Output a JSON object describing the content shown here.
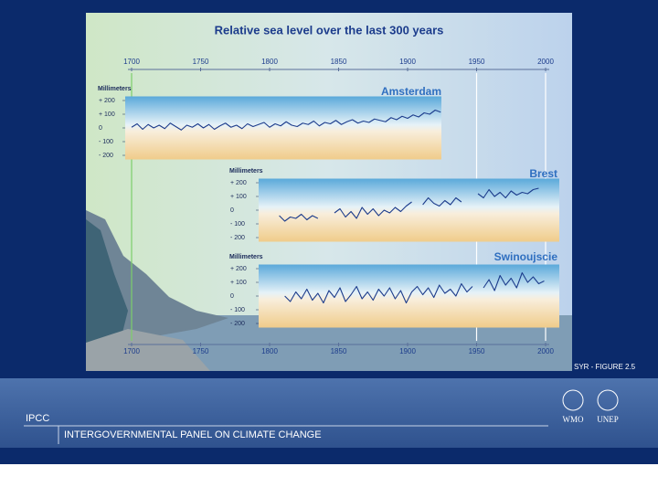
{
  "figure": {
    "title": "Relative sea level over the last 300 years",
    "xlim": [
      1700,
      2000
    ],
    "xticks": [
      1700,
      1750,
      1800,
      1850,
      1900,
      1950,
      2000
    ],
    "credit": "SYR - FIGURE 2.5"
  },
  "chart_data": [
    {
      "type": "line",
      "title": "Amsterdam",
      "ylabel": "Millimeters",
      "ylim": [
        -230,
        230
      ],
      "yticks": [
        {
          "value": 200,
          "label": "+ 200"
        },
        {
          "value": 100,
          "label": "+ 100"
        },
        0,
        {
          "value": -100,
          "label": "- 100"
        },
        {
          "value": -200,
          "label": "- 200"
        }
      ],
      "x": [
        1700,
        1704,
        1708,
        1712,
        1716,
        1720,
        1724,
        1728,
        1732,
        1736,
        1740,
        1744,
        1748,
        1752,
        1756,
        1760,
        1764,
        1768,
        1772,
        1776,
        1780,
        1784,
        1788,
        1792,
        1796,
        1800,
        1804,
        1808,
        1812,
        1816,
        1820,
        1824,
        1828,
        1832,
        1836,
        1840,
        1844,
        1848,
        1852,
        1856,
        1860,
        1864,
        1868,
        1872,
        1876,
        1880,
        1884,
        1888,
        1892,
        1896,
        1900,
        1904,
        1908,
        1912,
        1916,
        1920,
        1924
      ],
      "series": [
        {
          "name": "Amsterdam",
          "color": "#1c3c8c",
          "values": [
            5,
            30,
            -10,
            25,
            0,
            20,
            -5,
            35,
            10,
            -15,
            20,
            5,
            30,
            0,
            25,
            -10,
            15,
            35,
            5,
            20,
            -5,
            30,
            10,
            25,
            40,
            5,
            30,
            15,
            45,
            20,
            10,
            35,
            25,
            50,
            15,
            40,
            30,
            55,
            25,
            45,
            60,
            35,
            50,
            40,
            65,
            55,
            45,
            75,
            60,
            85,
            70,
            95,
            80,
            110,
            100,
            130,
            115
          ]
        }
      ]
    },
    {
      "type": "line",
      "title": "Brest",
      "ylabel": "Millimeters",
      "ylim": [
        -230,
        230
      ],
      "yticks": [
        {
          "value": 200,
          "label": "+ 200"
        },
        {
          "value": 100,
          "label": "+ 100"
        },
        0,
        {
          "value": -100,
          "label": "- 100"
        },
        {
          "value": -200,
          "label": "- 200"
        }
      ],
      "x": [
        1807,
        1811,
        1815,
        1819,
        1823,
        1827,
        1831,
        1835,
        1839,
        1843,
        1847,
        1851,
        1855,
        1859,
        1863,
        1867,
        1871,
        1875,
        1879,
        1883,
        1887,
        1891,
        1895,
        1899,
        1903,
        1907,
        1911,
        1915,
        1919,
        1923,
        1927,
        1931,
        1935,
        1939,
        1943,
        1947,
        1951,
        1955,
        1959,
        1963,
        1967,
        1971,
        1975,
        1979,
        1983,
        1987,
        1991,
        1995
      ],
      "series": [
        {
          "name": "Brest",
          "color": "#1c3c8c",
          "values": [
            -40,
            -80,
            -50,
            -60,
            -30,
            -70,
            -40,
            -60,
            null,
            null,
            -20,
            10,
            -50,
            -10,
            -60,
            20,
            -30,
            10,
            -40,
            0,
            -20,
            20,
            -10,
            30,
            60,
            null,
            40,
            90,
            50,
            30,
            70,
            40,
            90,
            60,
            null,
            null,
            120,
            90,
            150,
            100,
            130,
            90,
            140,
            110,
            130,
            120,
            150,
            160
          ]
        }
      ]
    },
    {
      "type": "line",
      "title": "Swinoujscie",
      "ylabel": "Millimeters",
      "ylim": [
        -230,
        230
      ],
      "yticks": [
        {
          "value": 200,
          "label": "+ 200"
        },
        {
          "value": 100,
          "label": "+ 100"
        },
        0,
        {
          "value": -100,
          "label": "- 100"
        },
        {
          "value": -200,
          "label": "- 200"
        }
      ],
      "x": [
        1811,
        1815,
        1819,
        1823,
        1827,
        1831,
        1835,
        1839,
        1843,
        1847,
        1851,
        1855,
        1859,
        1863,
        1867,
        1871,
        1875,
        1879,
        1883,
        1887,
        1891,
        1895,
        1899,
        1903,
        1907,
        1911,
        1915,
        1919,
        1923,
        1927,
        1931,
        1935,
        1939,
        1943,
        1947,
        1951,
        1955,
        1959,
        1963,
        1967,
        1971,
        1975,
        1979,
        1983,
        1987,
        1991,
        1995,
        1999
      ],
      "series": [
        {
          "name": "Swinoujscie",
          "color": "#1c3c8c",
          "values": [
            0,
            -40,
            30,
            -20,
            50,
            -30,
            20,
            -50,
            40,
            -10,
            60,
            -40,
            10,
            70,
            -20,
            30,
            -30,
            50,
            0,
            60,
            -20,
            40,
            -50,
            30,
            70,
            10,
            60,
            -10,
            80,
            20,
            50,
            0,
            90,
            30,
            70,
            null,
            60,
            120,
            40,
            150,
            80,
            130,
            60,
            170,
            100,
            140,
            90,
            110
          ]
        }
      ]
    }
  ],
  "footer": {
    "org": "IPCC",
    "name": "INTERGOVERNMENTAL PANEL ON CLIMATE CHANGE",
    "logos": [
      "WMO",
      "UNEP"
    ]
  }
}
